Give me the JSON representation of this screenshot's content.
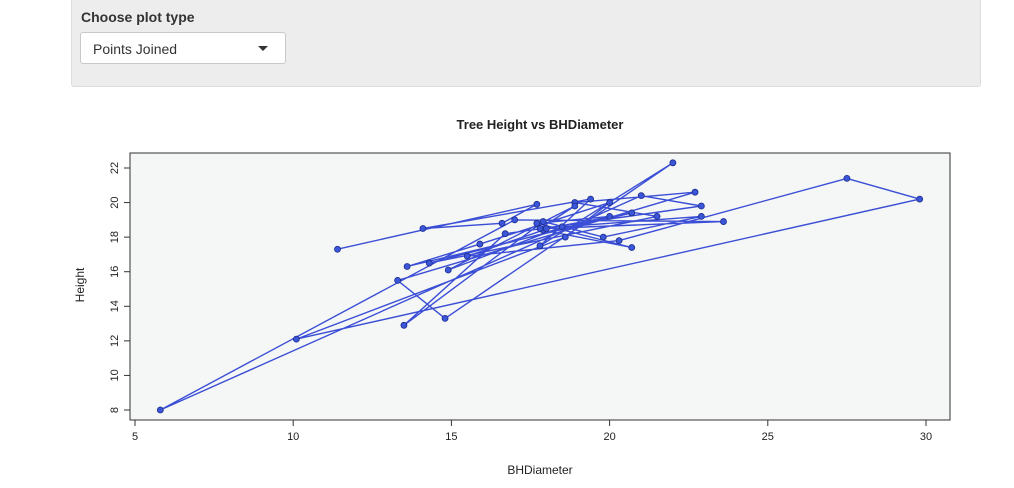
{
  "control": {
    "label": "Choose plot type",
    "selected": "Points Joined",
    "dropdown_icon": "caret-down-icon"
  },
  "colors": {
    "line": "#3b4fd6",
    "point_fill": "#3b56d9",
    "point_stroke": "#1a2a8a",
    "plot_background": "#f5f6f6",
    "panel_background": "#ededed"
  },
  "chart_data": {
    "type": "line",
    "title": "Tree Height vs BHDiameter",
    "xlabel": "BHDiameter",
    "ylabel": "Height",
    "xlim": [
      5,
      30
    ],
    "ylim": [
      8,
      22
    ],
    "xticks": [
      5,
      10,
      15,
      20,
      25,
      30
    ],
    "yticks": [
      8,
      10,
      12,
      14,
      16,
      18,
      20,
      22
    ],
    "grid": false,
    "markers": true,
    "series": [
      {
        "x": [
          11.4,
          17.7,
          16.6,
          14.1,
          19.4,
          17.8,
          22.0,
          14.8,
          13.3,
          22.7,
          18.9,
          21.5,
          14.3,
          20.0,
          17.7,
          20.7,
          17.9,
          15.5,
          20.3,
          27.5,
          29.8,
          10.1,
          18.6,
          20.0,
          15.9,
          13.6,
          20.7,
          18.0,
          23.6,
          17.0,
          5.8,
          21.0,
          22.9,
          16.7,
          13.5,
          17.9,
          19.8,
          22.9,
          18.5,
          14.9,
          18.9,
          17.8
        ],
        "y": [
          17.3,
          19.9,
          18.8,
          18.5,
          20.2,
          17.5,
          22.3,
          13.3,
          15.5,
          20.6,
          20.0,
          19.2,
          16.5,
          19.2,
          18.8,
          17.4,
          18.4,
          16.9,
          17.8,
          21.4,
          20.2,
          12.1,
          18.0,
          20.0,
          17.6,
          16.3,
          19.4,
          18.5,
          18.9,
          19.0,
          8.0,
          20.4,
          19.8,
          18.2,
          12.9,
          18.9,
          18.0,
          19.2,
          18.6,
          16.1,
          19.8,
          18.5
        ]
      }
    ]
  }
}
